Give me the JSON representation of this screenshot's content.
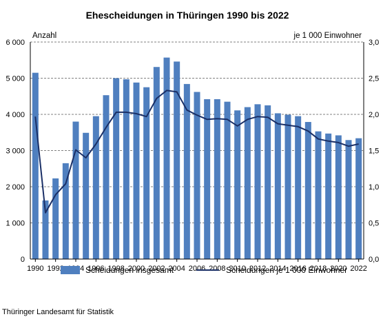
{
  "chart_data": {
    "type": "bar",
    "title": "Ehescheidungen in Thüringen 1990 bis 2022",
    "ylabel_left": "Anzahl",
    "ylabel_right": "je 1 000 Einwohner",
    "source": "Thüringer Landesamt für Statistik",
    "x": [
      1990,
      1991,
      1992,
      1993,
      1994,
      1995,
      1996,
      1997,
      1998,
      1999,
      2000,
      2001,
      2002,
      2003,
      2004,
      2005,
      2006,
      2007,
      2008,
      2009,
      2010,
      2011,
      2012,
      2013,
      2014,
      2015,
      2016,
      2017,
      2018,
      2019,
      2020,
      2021,
      2022
    ],
    "x_tick_labels": [
      "1990",
      "1992",
      "1994",
      "1996",
      "1998",
      "2000",
      "2002",
      "2004",
      "2006",
      "2008",
      "2010",
      "2012",
      "2014",
      "2016",
      "2018",
      "2020",
      "2022"
    ],
    "ylim_left": [
      0,
      6000
    ],
    "ylim_right": [
      0,
      3.0
    ],
    "y_ticks_left": [
      "0",
      "1 000",
      "2 000",
      "3 000",
      "4 000",
      "5 000",
      "6 000"
    ],
    "y_ticks_right": [
      "0,0",
      "0,5",
      "1,0",
      "1,5",
      "2,0",
      "2,5",
      "3,0"
    ],
    "grid": "horizontal dashed",
    "legend_position": "bottom",
    "series": [
      {
        "name": "Scheidungen insgesamt",
        "kind": "bar",
        "axis": "left",
        "color": "#4f7fbf",
        "values": [
          5150,
          1620,
          2230,
          2650,
          3800,
          3490,
          3950,
          4530,
          5000,
          4970,
          4880,
          4750,
          5310,
          5570,
          5460,
          4840,
          4620,
          4420,
          4420,
          4350,
          4110,
          4200,
          4280,
          4250,
          4030,
          3990,
          3950,
          3790,
          3530,
          3470,
          3420,
          3290,
          3340
        ]
      },
      {
        "name": "Scheidungen je 1 000 Einwohner",
        "kind": "line",
        "axis": "right",
        "color": "#1a2f66",
        "values": [
          1.97,
          0.64,
          0.89,
          1.04,
          1.51,
          1.4,
          1.59,
          1.82,
          2.03,
          2.03,
          2.01,
          1.97,
          2.22,
          2.33,
          2.31,
          2.06,
          1.99,
          1.93,
          1.94,
          1.93,
          1.84,
          1.93,
          1.97,
          1.96,
          1.87,
          1.85,
          1.83,
          1.77,
          1.66,
          1.63,
          1.61,
          1.56,
          1.59
        ]
      }
    ]
  }
}
